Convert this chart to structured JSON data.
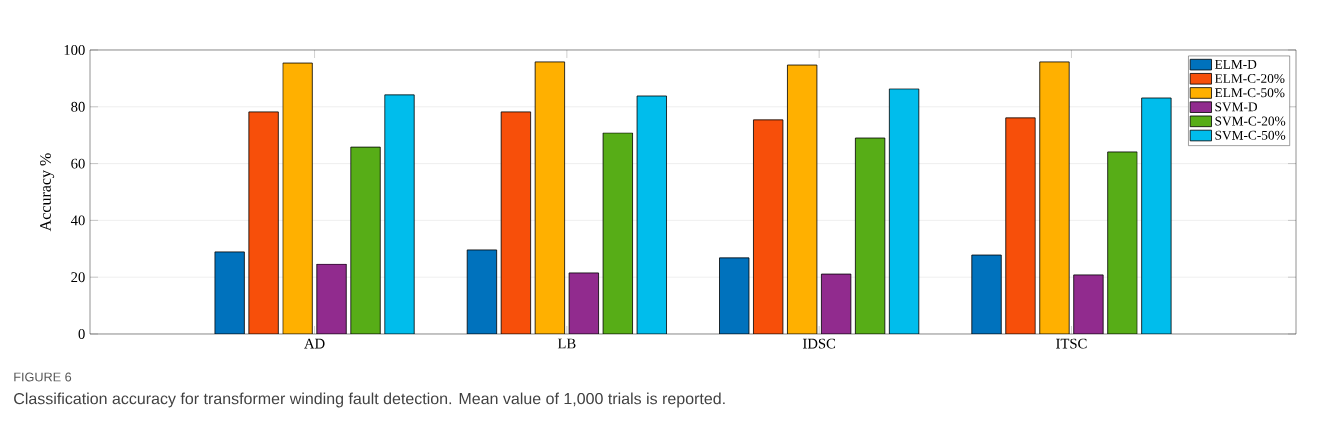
{
  "chart_data": {
    "type": "bar",
    "ylabel": "Accuracy %",
    "categories": [
      "AD",
      "LB",
      "IDSC",
      "ITSC"
    ],
    "series": [
      {
        "name": "ELM-D",
        "color": "#0072bd",
        "values": [
          28.9,
          29.6,
          26.8,
          27.8
        ]
      },
      {
        "name": "ELM-C-20%",
        "color": "#f74f0a",
        "values": [
          78.2,
          78.2,
          75.4,
          76.1
        ]
      },
      {
        "name": "ELM-C-50%",
        "color": "#ffb000",
        "values": [
          95.4,
          95.8,
          94.7,
          95.8
        ]
      },
      {
        "name": "SVM-D",
        "color": "#912b8e",
        "values": [
          24.6,
          21.5,
          21.1,
          20.8
        ]
      },
      {
        "name": "SVM-C-20%",
        "color": "#57ad17",
        "values": [
          65.8,
          70.8,
          69.0,
          64.1
        ]
      },
      {
        "name": "SVM-C-50%",
        "color": "#00bdec",
        "values": [
          84.2,
          83.8,
          86.3,
          83.1
        ]
      }
    ],
    "ylim": [
      0,
      100
    ],
    "yticks": [
      0,
      20,
      40,
      60,
      80,
      100
    ],
    "grid": "y",
    "legend": "top right",
    "annotations": [
      "FIGURE 6",
      "Classification accuracy for transformer winding fault detection. Mean value of 1,000 trials is reported."
    ]
  }
}
